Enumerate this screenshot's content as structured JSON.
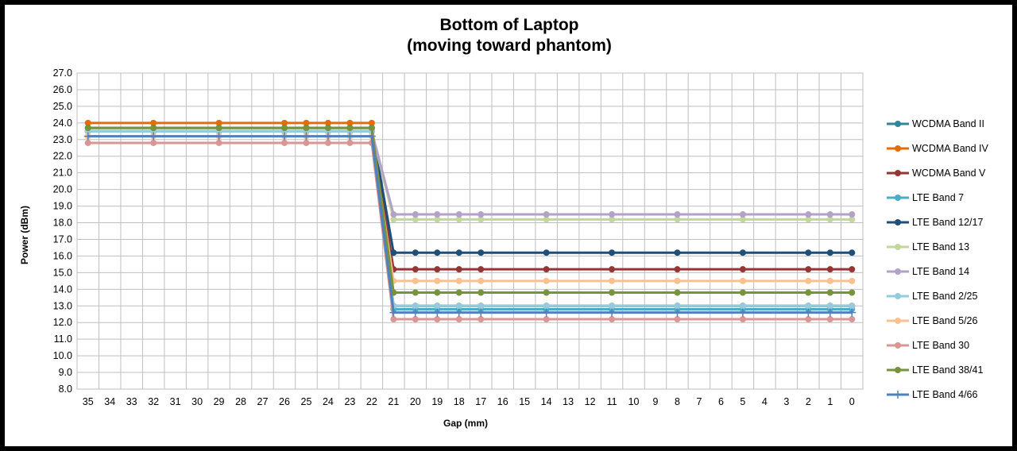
{
  "chart_data": {
    "type": "line",
    "title": "Bottom of Laptop",
    "subtitle": "(moving toward phantom)",
    "xlabel": "Gap (mm)",
    "ylabel": "Power (dBm)",
    "ylim": [
      8.0,
      27.0
    ],
    "yticks": [
      "8.0",
      "9.0",
      "10.0",
      "11.0",
      "12.0",
      "13.0",
      "14.0",
      "15.0",
      "16.0",
      "17.0",
      "18.0",
      "19.0",
      "20.0",
      "21.0",
      "22.0",
      "23.0",
      "24.0",
      "25.0",
      "26.0",
      "27.0"
    ],
    "x_categories": [
      "35",
      "34",
      "33",
      "32",
      "31",
      "30",
      "29",
      "28",
      "27",
      "26",
      "25",
      "24",
      "23",
      "22",
      "21",
      "20",
      "19",
      "18",
      "17",
      "16",
      "15",
      "14",
      "13",
      "12",
      "11",
      "10",
      "9",
      "8",
      "7",
      "6",
      "5",
      "4",
      "3",
      "2",
      "1",
      "0"
    ],
    "x_points": [
      35,
      32,
      29,
      26,
      25,
      24,
      23,
      22,
      21,
      20,
      19,
      18,
      17,
      14,
      11,
      8,
      5,
      2,
      1,
      0
    ],
    "grid": true,
    "legend_position": "right",
    "series": [
      {
        "name": "WCDMA Band II",
        "color": "#31849B",
        "marker": "circle",
        "values": [
          23.5,
          23.5,
          23.5,
          23.5,
          23.5,
          23.5,
          23.5,
          23.5,
          13.0,
          13.0,
          13.0,
          13.0,
          13.0,
          13.0,
          13.0,
          13.0,
          13.0,
          13.0,
          13.0,
          13.0
        ]
      },
      {
        "name": "WCDMA Band IV",
        "color": "#E46C0A",
        "marker": "circle",
        "values": [
          24.0,
          24.0,
          24.0,
          24.0,
          24.0,
          24.0,
          24.0,
          24.0,
          13.0,
          13.0,
          13.0,
          13.0,
          13.0,
          13.0,
          13.0,
          13.0,
          13.0,
          13.0,
          13.0,
          13.0
        ]
      },
      {
        "name": "WCDMA Band V",
        "color": "#943634",
        "marker": "circle",
        "values": [
          23.5,
          23.5,
          23.5,
          23.5,
          23.5,
          23.5,
          23.5,
          23.5,
          15.2,
          15.2,
          15.2,
          15.2,
          15.2,
          15.2,
          15.2,
          15.2,
          15.2,
          15.2,
          15.2,
          15.2
        ]
      },
      {
        "name": "LTE Band 7",
        "color": "#4BACC6",
        "marker": "circle",
        "values": [
          23.5,
          23.5,
          23.5,
          23.5,
          23.5,
          23.5,
          23.5,
          23.5,
          12.8,
          12.8,
          12.8,
          12.8,
          12.8,
          12.8,
          12.8,
          12.8,
          12.8,
          12.8,
          12.8,
          12.8
        ]
      },
      {
        "name": "LTE Band 12/17",
        "color": "#1F4E79",
        "marker": "circle",
        "values": [
          23.7,
          23.7,
          23.7,
          23.7,
          23.7,
          23.7,
          23.7,
          23.7,
          16.2,
          16.2,
          16.2,
          16.2,
          16.2,
          16.2,
          16.2,
          16.2,
          16.2,
          16.2,
          16.2,
          16.2
        ]
      },
      {
        "name": "LTE Band 13",
        "color": "#C3D69B",
        "marker": "circle",
        "values": [
          23.5,
          23.5,
          23.5,
          23.5,
          23.5,
          23.5,
          23.5,
          23.5,
          18.2,
          18.2,
          18.2,
          18.2,
          18.2,
          18.2,
          18.2,
          18.2,
          18.2,
          18.2,
          18.2,
          18.2
        ]
      },
      {
        "name": "LTE Band 14",
        "color": "#B3A2C7",
        "marker": "circle",
        "values": [
          23.5,
          23.5,
          23.5,
          23.5,
          23.5,
          23.5,
          23.5,
          23.5,
          18.5,
          18.5,
          18.5,
          18.5,
          18.5,
          18.5,
          18.5,
          18.5,
          18.5,
          18.5,
          18.5,
          18.5
        ]
      },
      {
        "name": "LTE Band 2/25",
        "color": "#93CDDD",
        "marker": "circle",
        "values": [
          23.5,
          23.5,
          23.5,
          23.5,
          23.5,
          23.5,
          23.5,
          23.5,
          13.0,
          13.0,
          13.0,
          13.0,
          13.0,
          13.0,
          13.0,
          13.0,
          13.0,
          13.0,
          13.0,
          13.0
        ]
      },
      {
        "name": "LTE Band 5/26",
        "color": "#FAC090",
        "marker": "circle",
        "values": [
          23.2,
          23.2,
          23.2,
          23.2,
          23.2,
          23.2,
          23.2,
          23.2,
          14.5,
          14.5,
          14.5,
          14.5,
          14.5,
          14.5,
          14.5,
          14.5,
          14.5,
          14.5,
          14.5,
          14.5
        ]
      },
      {
        "name": "LTE Band 30",
        "color": "#D99694",
        "marker": "circle",
        "values": [
          22.8,
          22.8,
          22.8,
          22.8,
          22.8,
          22.8,
          22.8,
          22.8,
          12.2,
          12.2,
          12.2,
          12.2,
          12.2,
          12.2,
          12.2,
          12.2,
          12.2,
          12.2,
          12.2,
          12.2
        ]
      },
      {
        "name": "LTE Band 38/41",
        "color": "#77933C",
        "marker": "circle",
        "values": [
          23.7,
          23.7,
          23.7,
          23.7,
          23.7,
          23.7,
          23.7,
          23.7,
          13.8,
          13.8,
          13.8,
          13.8,
          13.8,
          13.8,
          13.8,
          13.8,
          13.8,
          13.8,
          13.8,
          13.8
        ]
      },
      {
        "name": "LTE Band 4/66",
        "color": "#4F81BD",
        "marker": "plus",
        "values": [
          23.2,
          23.2,
          23.2,
          23.2,
          23.2,
          23.2,
          23.2,
          23.2,
          12.6,
          12.6,
          12.6,
          12.6,
          12.6,
          12.6,
          12.6,
          12.6,
          12.6,
          12.6,
          12.6,
          12.6
        ]
      }
    ]
  }
}
